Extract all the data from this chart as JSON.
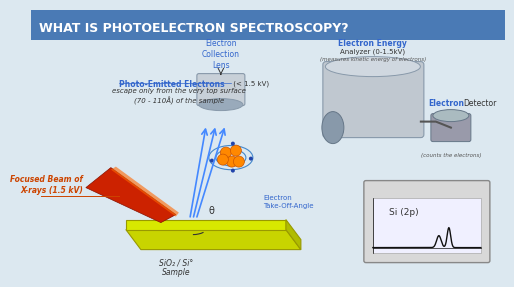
{
  "title": "WHAT IS PHOTOELECTRON SPECTROSCOPY?",
  "title_bg": "#4a7ab5",
  "title_color": "#ffffff",
  "bg_color": "#dce8f0",
  "body_bg": "#eef4f8",
  "label_photo_emitted": "Photo-Emitted Electrons",
  "label_photo_kv": " (< 1.5 kV)",
  "label_photo_desc": "escape only from the very top surface\n(70 - 110Å) of the sample",
  "label_xray": "Focused Beam of\nX-rays (1.5 kV)",
  "label_lens": "Electron\nCollection\nLens",
  "label_analyzer": "Electron Energy",
  "label_analyzer2": "Analyzer (0-1.5kV)",
  "label_analyzer_sub": "(measures kinetic energy of electrons)",
  "label_detector": "Electron",
  "label_detector2": "Detector",
  "label_detector_sub": "(counts the electrons)",
  "label_electron_angle": "Electron\nTake-Off-Angle",
  "label_sample": "SiO₂ / Si°\nSample",
  "label_theta": "θ",
  "label_si": "Si (2p)",
  "blue_color": "#3366cc",
  "orange_color": "#cc4400",
  "dark_blue": "#1a3a6b",
  "arrow_blue": "#4488ff"
}
